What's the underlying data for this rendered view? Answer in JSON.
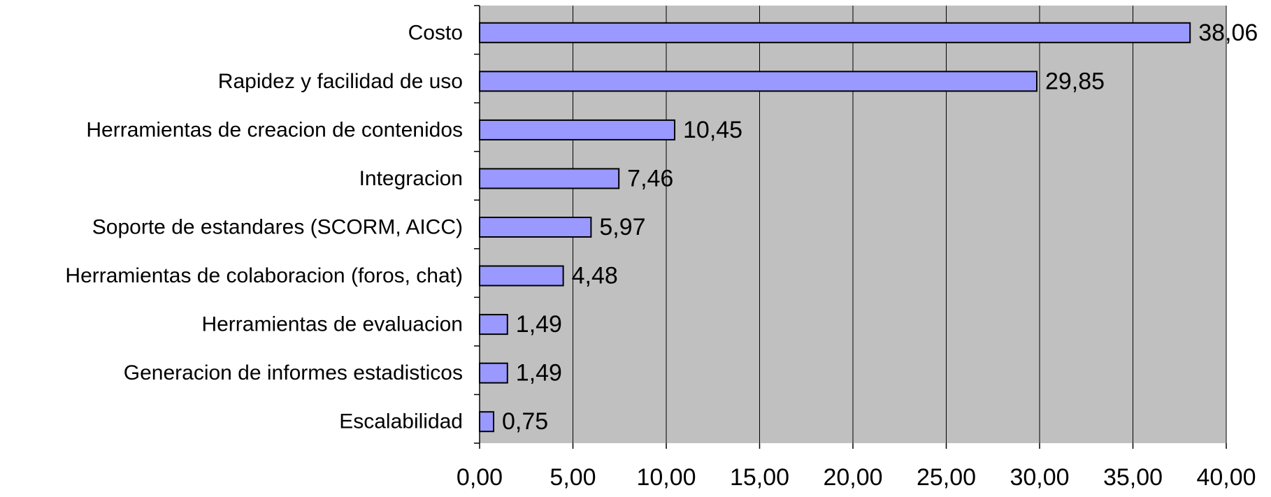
{
  "chart_data": {
    "type": "bar",
    "orientation": "horizontal",
    "title": "",
    "xlabel": "",
    "ylabel": "",
    "categories": [
      "Costo",
      "Rapidez y facilidad de uso",
      "Herramientas de creacion de contenidos",
      "Integracion",
      "Soporte de estandares (SCORM, AICC)",
      "Herramientas de colaboracion (foros, chat)",
      "Herramientas de evaluacion",
      "Generacion de informes estadisticos",
      "Escalabilidad"
    ],
    "values": [
      38.06,
      29.85,
      10.45,
      7.46,
      5.97,
      4.48,
      1.49,
      1.49,
      0.75
    ],
    "value_labels": [
      "38,06",
      "29,85",
      "10,45",
      "7,46",
      "5,97",
      "4,48",
      "1,49",
      "1,49",
      "0,75"
    ],
    "xlim": [
      0,
      40
    ],
    "x_ticks": [
      0,
      5,
      10,
      15,
      20,
      25,
      30,
      35,
      40
    ],
    "x_tick_labels": [
      "0,00",
      "5,00",
      "10,00",
      "15,00",
      "20,00",
      "25,00",
      "30,00",
      "35,00",
      "40,00"
    ],
    "grid": "vertical",
    "legend": "none",
    "colors": {
      "bar_fill": "#9999ff",
      "bar_stroke": "#000000",
      "plot_background": "#c0c0c0",
      "gridline": "#000000",
      "text": "#000000"
    }
  }
}
